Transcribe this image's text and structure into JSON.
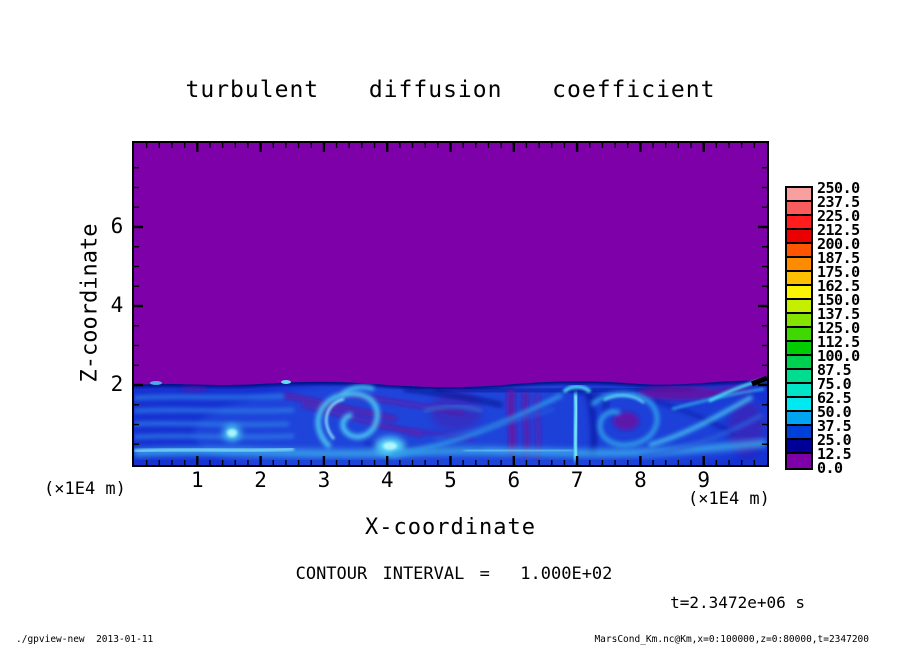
{
  "title": "turbulent  diffusion  coefficient",
  "annotations": {
    "contour_interval": "CONTOUR INTERVAL =  1.000E+02",
    "time": "t=2.3472e+06 s",
    "footer_left": "./gpview-new  2013-01-11",
    "footer_right": "MarsCond_Km.nc@Km,x=0:100000,z=0:80000,t=2347200"
  },
  "chart_data": {
    "type": "heatmap",
    "title": "turbulent diffusion coefficient",
    "xlabel": "X-coordinate",
    "ylabel": "Z-coordinate",
    "x_unit_label": "(×1E4 m)",
    "z_unit_label": "(×1E4 m)",
    "x_range": [
      0,
      10
    ],
    "z_range": [
      0,
      8
    ],
    "x_tick_labels": [
      "1",
      "2",
      "3",
      "4",
      "5",
      "6",
      "7",
      "8",
      "9"
    ],
    "x_tick_values": [
      1,
      2,
      3,
      4,
      5,
      6,
      7,
      8,
      9
    ],
    "x_minor_step": 0.2,
    "z_tick_labels": [
      "2",
      "4",
      "6"
    ],
    "z_tick_values": [
      2,
      4,
      6
    ],
    "z_minor_step": 0.5,
    "grid": false,
    "legend_position": "right-colorbar",
    "contour_interval": 100.0,
    "time_seconds": 2347200,
    "field_summary": {
      "background_value": 0.0,
      "background_color": "#7e00a8",
      "boundary_layer_top_z": 2.0,
      "layer_base_value": 25.0,
      "layer_base_color": "#1732d2",
      "eddy_peak_value": 100.0,
      "description": "Quiescent region (value 0, purple) above z≈2×1E4 m; turbulent boundary layer below with blue base (~25), cyan plumes/vortices (~50–100) at x≈3.5 and x≈7, purple low-value mottling at x≈2.5–4.5 and x≈6, bright near-surface streak at z≈0.3."
    },
    "colorbar": {
      "levels_ascending": [
        0.0,
        12.5,
        25.0,
        37.5,
        50.0,
        62.5,
        75.0,
        87.5,
        100.0,
        112.5,
        125.0,
        137.5,
        150.0,
        162.5,
        175.0,
        187.5,
        200.0,
        212.5,
        225.0,
        237.5,
        250.0
      ],
      "labels_top_to_bottom": [
        "250.0",
        "237.5",
        "225.0",
        "212.5",
        "200.0",
        "187.5",
        "175.0",
        "162.5",
        "150.0",
        "137.5",
        "125.0",
        "112.5",
        "100.0",
        "87.5",
        "75.0",
        "62.5",
        "50.0",
        "37.5",
        "25.0",
        "12.5",
        "0.0"
      ],
      "colors_top_to_bottom": [
        "#f8a0a0",
        "#f85c5c",
        "#ff1c1c",
        "#ea0000",
        "#ff5400",
        "#ff8c00",
        "#ffc000",
        "#fcf400",
        "#c4f000",
        "#84e400",
        "#40d800",
        "#00cc00",
        "#00d050",
        "#00dc90",
        "#00e4c8",
        "#00e8f0",
        "#00a4f0",
        "#0040d8",
        "#000098",
        "#7e00a8"
      ]
    }
  }
}
